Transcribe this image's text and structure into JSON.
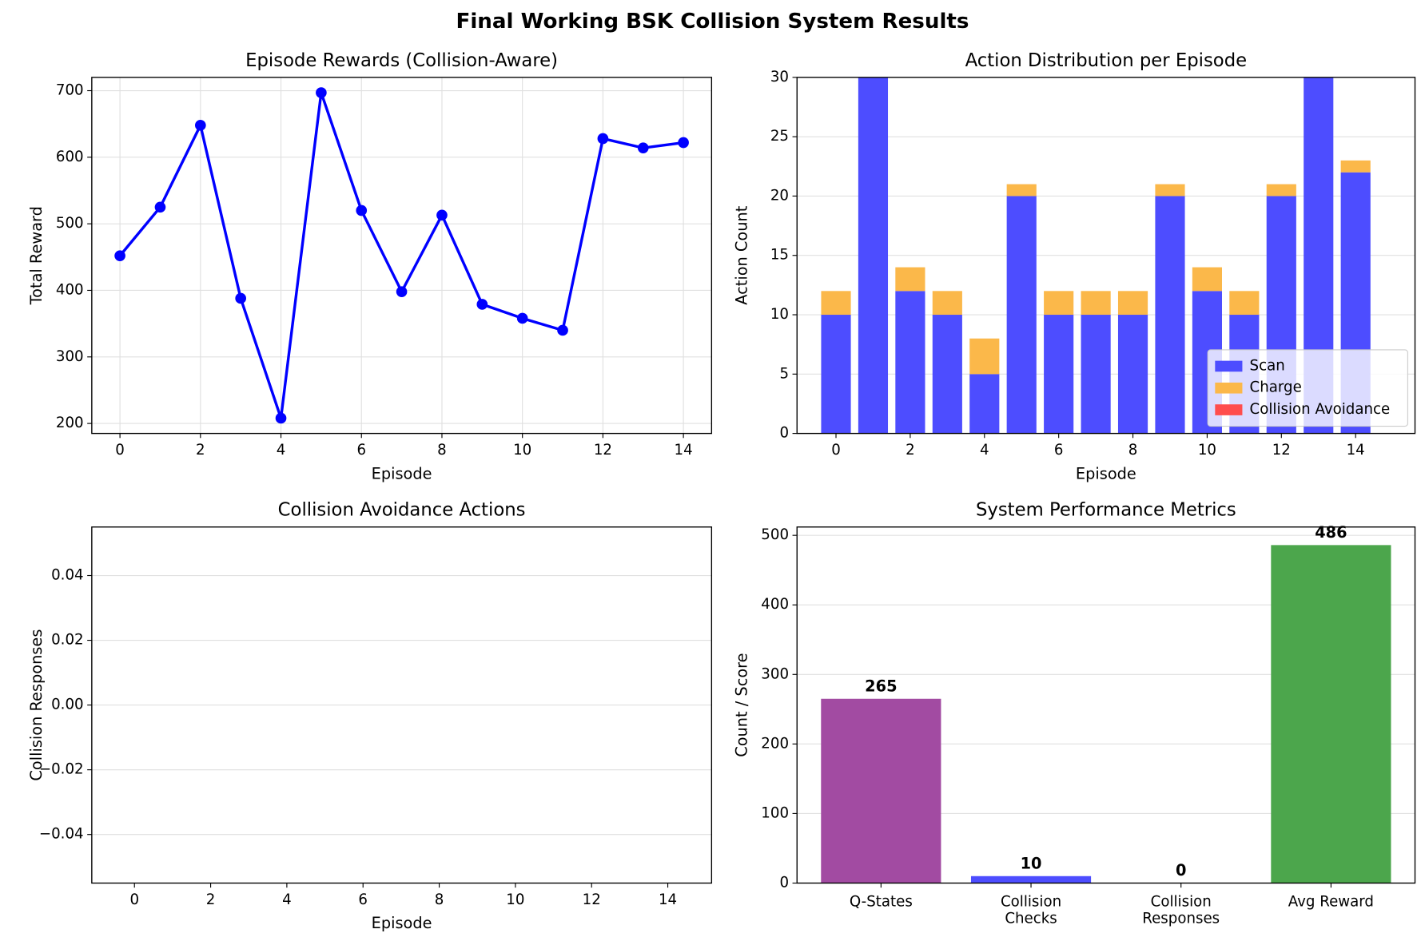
{
  "title": "Final Working BSK Collision System Results",
  "chart_data": [
    {
      "type": "line",
      "title": "Episode Rewards (Collision-Aware)",
      "xlabel": "Episode",
      "ylabel": "Total Reward",
      "x": [
        0,
        1,
        2,
        3,
        4,
        5,
        6,
        7,
        8,
        9,
        10,
        11,
        12,
        13,
        14
      ],
      "series": [
        {
          "color": "#0000ff",
          "values": [
            452,
            525,
            648,
            388,
            208,
            697,
            520,
            398,
            513,
            379,
            358,
            340,
            628,
            614,
            622
          ]
        }
      ],
      "xlim": [
        -0.7,
        14.7
      ],
      "xticks": [
        0,
        2,
        4,
        6,
        8,
        10,
        12,
        14
      ],
      "ylim": [
        185,
        720
      ],
      "yticks": [
        200,
        300,
        400,
        500,
        600,
        700
      ],
      "grid": "both"
    },
    {
      "type": "stacked_bar",
      "title": "Action Distribution per Episode",
      "xlabel": "Episode",
      "ylabel": "Action Count",
      "x": [
        0,
        1,
        2,
        3,
        4,
        5,
        6,
        7,
        8,
        9,
        10,
        11,
        12,
        13,
        14
      ],
      "series": [
        {
          "name": "Scan",
          "color": "#4d4dff",
          "values": [
            10,
            30,
            12,
            10,
            5,
            20,
            10,
            10,
            10,
            20,
            12,
            10,
            20,
            30,
            22
          ]
        },
        {
          "name": "Charge",
          "color": "#fbb84a",
          "values": [
            2,
            0,
            2,
            2,
            3,
            1,
            2,
            2,
            2,
            1,
            2,
            2,
            1,
            0,
            1
          ]
        },
        {
          "name": "Collision Avoidance",
          "color": "#ff4d4d",
          "values": [
            0,
            0,
            0,
            0,
            0,
            0,
            0,
            0,
            0,
            0,
            0,
            0,
            0,
            0,
            0
          ]
        }
      ],
      "xlim": [
        -1.05,
        15.6
      ],
      "xticks": [
        0,
        2,
        4,
        6,
        8,
        10,
        12,
        14
      ],
      "ylim": [
        0,
        30
      ],
      "yticks": [
        0,
        5,
        10,
        15,
        20,
        25,
        30
      ],
      "grid": "y",
      "legend": "lower right"
    },
    {
      "type": "line",
      "title": "Collision Avoidance Actions",
      "xlabel": "Episode",
      "ylabel": "Collision Responses",
      "series": [],
      "xlim": [
        -1.12,
        15.15
      ],
      "xticks": [
        0,
        2,
        4,
        6,
        8,
        10,
        12,
        14
      ],
      "ylim": [
        -0.055,
        0.055
      ],
      "yticks": [
        {
          "value": -0.04,
          "label": "−0.04"
        },
        {
          "value": -0.02,
          "label": "−0.02"
        },
        {
          "value": 0,
          "label": "0.00"
        },
        {
          "value": 0.02,
          "label": "0.02"
        },
        {
          "value": 0.04,
          "label": "0.04"
        }
      ],
      "grid": "y"
    },
    {
      "type": "bar",
      "title": "System Performance Metrics",
      "ylabel": "Count / Score",
      "categories": [
        "Q-States",
        "Collision\nChecks",
        "Collision\nResponses",
        "Avg Reward"
      ],
      "values": [
        265,
        10,
        0,
        486
      ],
      "colors": [
        "#a24ba2",
        "#4d4dff",
        "#ff4d4d",
        "#4ca64c"
      ],
      "ylim": [
        0,
        512
      ],
      "yticks": [
        0,
        100,
        200,
        300,
        400,
        500
      ],
      "grid": "y"
    }
  ]
}
